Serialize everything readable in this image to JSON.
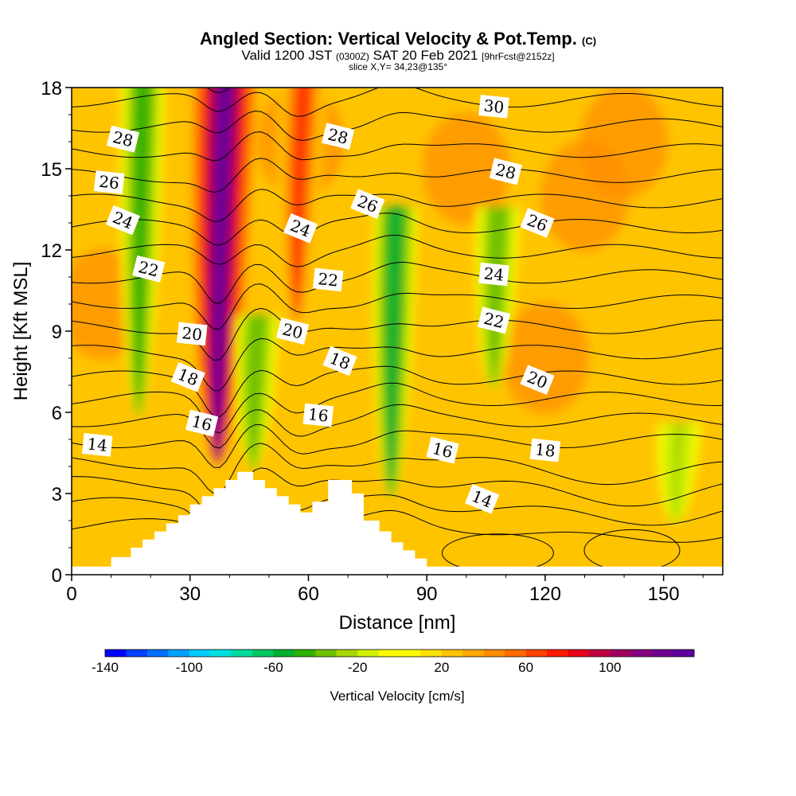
{
  "header": {
    "title": "Angled Section: Vertical Velocity & Pot.Temp.",
    "title_mark": "(C)",
    "subtitle_a": "Valid 1200 JST",
    "subtitle_b": "(0300Z)",
    "subtitle_c": "SAT 20 Feb 2021",
    "subtitle_d": "[9hrFcst@2152z]",
    "slice": "slice X,Y= 34,23@135°"
  },
  "chart_data": {
    "type": "heatmap",
    "xlabel": "Distance [nm]",
    "ylabel": "Height [Kft MSL]",
    "xlim": [
      0,
      165
    ],
    "ylim": [
      0,
      18
    ],
    "x_ticks": [
      "0",
      "30",
      "60",
      "90",
      "120",
      "150"
    ],
    "y_ticks": [
      "0",
      "3",
      "6",
      "9",
      "12",
      "15",
      "18"
    ],
    "colorbar": {
      "label": "Vertical Velocity [cm/s]",
      "range": [
        -140,
        140
      ],
      "step": 10,
      "tick_labels": [
        "-140",
        "-100",
        "-60",
        "-20",
        "20",
        "60",
        "100"
      ],
      "colors": [
        "#0000ff",
        "#0040ff",
        "#0070ff",
        "#00a0ff",
        "#00ccff",
        "#00e0e0",
        "#00dca0",
        "#00c860",
        "#00b030",
        "#30b000",
        "#70c000",
        "#a8d800",
        "#d4f000",
        "#ffff00",
        "#ffff00",
        "#ffe000",
        "#ffc400",
        "#ffa800",
        "#ff8c00",
        "#ff6a00",
        "#ff4400",
        "#ff1a00",
        "#e80018",
        "#c00040",
        "#a00060",
        "#880080",
        "#700090",
        "#6000a0"
      ]
    },
    "vertical_velocity_features": [
      {
        "kind": "updraft",
        "x": 37,
        "y_bottom": 4.2,
        "y_top": 18,
        "peak_cms": 130
      },
      {
        "kind": "updraft",
        "x": 57,
        "y_bottom": 9.5,
        "y_top": 18,
        "peak_cms": 70
      },
      {
        "kind": "downdraft",
        "x": 17,
        "y_bottom": 6,
        "y_top": 18,
        "peak_cms": -50
      },
      {
        "kind": "downdraft",
        "x": 46,
        "y_bottom": 4,
        "y_top": 9,
        "peak_cms": -40
      },
      {
        "kind": "downdraft",
        "x": 81,
        "y_bottom": 3,
        "y_top": 13,
        "peak_cms": -60
      },
      {
        "kind": "downdraft",
        "x": 107,
        "y_bottom": 7,
        "y_top": 13,
        "peak_cms": -40
      },
      {
        "kind": "downdraft",
        "x": 153,
        "y_bottom": 2,
        "y_top": 5,
        "peak_cms": -25
      }
    ],
    "terrain_kft": [
      [
        0,
        0.3
      ],
      [
        10,
        0.3
      ],
      [
        10,
        0.65
      ],
      [
        15,
        0.65
      ],
      [
        15,
        1.0
      ],
      [
        18,
        1.0
      ],
      [
        18,
        1.3
      ],
      [
        21,
        1.3
      ],
      [
        21,
        1.6
      ],
      [
        24,
        1.6
      ],
      [
        24,
        1.9
      ],
      [
        27,
        1.9
      ],
      [
        27,
        2.2
      ],
      [
        30,
        2.2
      ],
      [
        30,
        2.6
      ],
      [
        33,
        2.6
      ],
      [
        33,
        2.9
      ],
      [
        36,
        2.9
      ],
      [
        36,
        3.2
      ],
      [
        39,
        3.2
      ],
      [
        39,
        3.5
      ],
      [
        42,
        3.5
      ],
      [
        42,
        3.8
      ],
      [
        46,
        3.8
      ],
      [
        46,
        3.5
      ],
      [
        49,
        3.5
      ],
      [
        49,
        3.2
      ],
      [
        52,
        3.2
      ],
      [
        52,
        2.9
      ],
      [
        55,
        2.9
      ],
      [
        55,
        2.6
      ],
      [
        58,
        2.6
      ],
      [
        58,
        2.3
      ],
      [
        61,
        2.3
      ],
      [
        61,
        2.7
      ],
      [
        65,
        2.7
      ],
      [
        65,
        3.5
      ],
      [
        71,
        3.5
      ],
      [
        71,
        3.0
      ],
      [
        74,
        3.0
      ],
      [
        74,
        2.0
      ],
      [
        78,
        2.0
      ],
      [
        78,
        1.6
      ],
      [
        81,
        1.6
      ],
      [
        81,
        1.2
      ],
      [
        84,
        1.2
      ],
      [
        84,
        0.9
      ],
      [
        87,
        0.9
      ],
      [
        87,
        0.6
      ],
      [
        90,
        0.6
      ],
      [
        90,
        0.3
      ],
      [
        165,
        0.3
      ]
    ],
    "potential_temperature_levels_c": [
      12,
      13,
      14,
      15,
      16,
      17,
      18,
      19,
      20,
      21,
      22,
      23,
      24,
      25,
      26,
      27,
      28,
      29,
      30,
      31
    ],
    "contour_labels": [
      {
        "text": "14",
        "x": 6.5,
        "y": 4.8
      },
      {
        "text": "16",
        "x": 33,
        "y": 5.6
      },
      {
        "text": "18",
        "x": 29.5,
        "y": 7.3
      },
      {
        "text": "20",
        "x": 30.5,
        "y": 8.9
      },
      {
        "text": "22",
        "x": 19.5,
        "y": 11.3
      },
      {
        "text": "24",
        "x": 13,
        "y": 13.1
      },
      {
        "text": "26",
        "x": 9.5,
        "y": 14.5
      },
      {
        "text": "28",
        "x": 13,
        "y": 16.1
      },
      {
        "text": "24",
        "x": 58,
        "y": 12.8
      },
      {
        "text": "22",
        "x": 65,
        "y": 10.9
      },
      {
        "text": "20",
        "x": 56,
        "y": 9.0
      },
      {
        "text": "18",
        "x": 68,
        "y": 7.9
      },
      {
        "text": "16",
        "x": 62.5,
        "y": 5.9
      },
      {
        "text": "28",
        "x": 67.5,
        "y": 16.2
      },
      {
        "text": "26",
        "x": 75,
        "y": 13.7
      },
      {
        "text": "30",
        "x": 107,
        "y": 17.3
      },
      {
        "text": "28",
        "x": 110,
        "y": 14.9
      },
      {
        "text": "26",
        "x": 118,
        "y": 13.0
      },
      {
        "text": "24",
        "x": 107,
        "y": 11.1
      },
      {
        "text": "22",
        "x": 107,
        "y": 9.4
      },
      {
        "text": "20",
        "x": 118,
        "y": 7.2
      },
      {
        "text": "18",
        "x": 120,
        "y": 4.6
      },
      {
        "text": "16",
        "x": 94,
        "y": 4.6
      },
      {
        "text": "14",
        "x": 104,
        "y": 2.8
      }
    ]
  }
}
